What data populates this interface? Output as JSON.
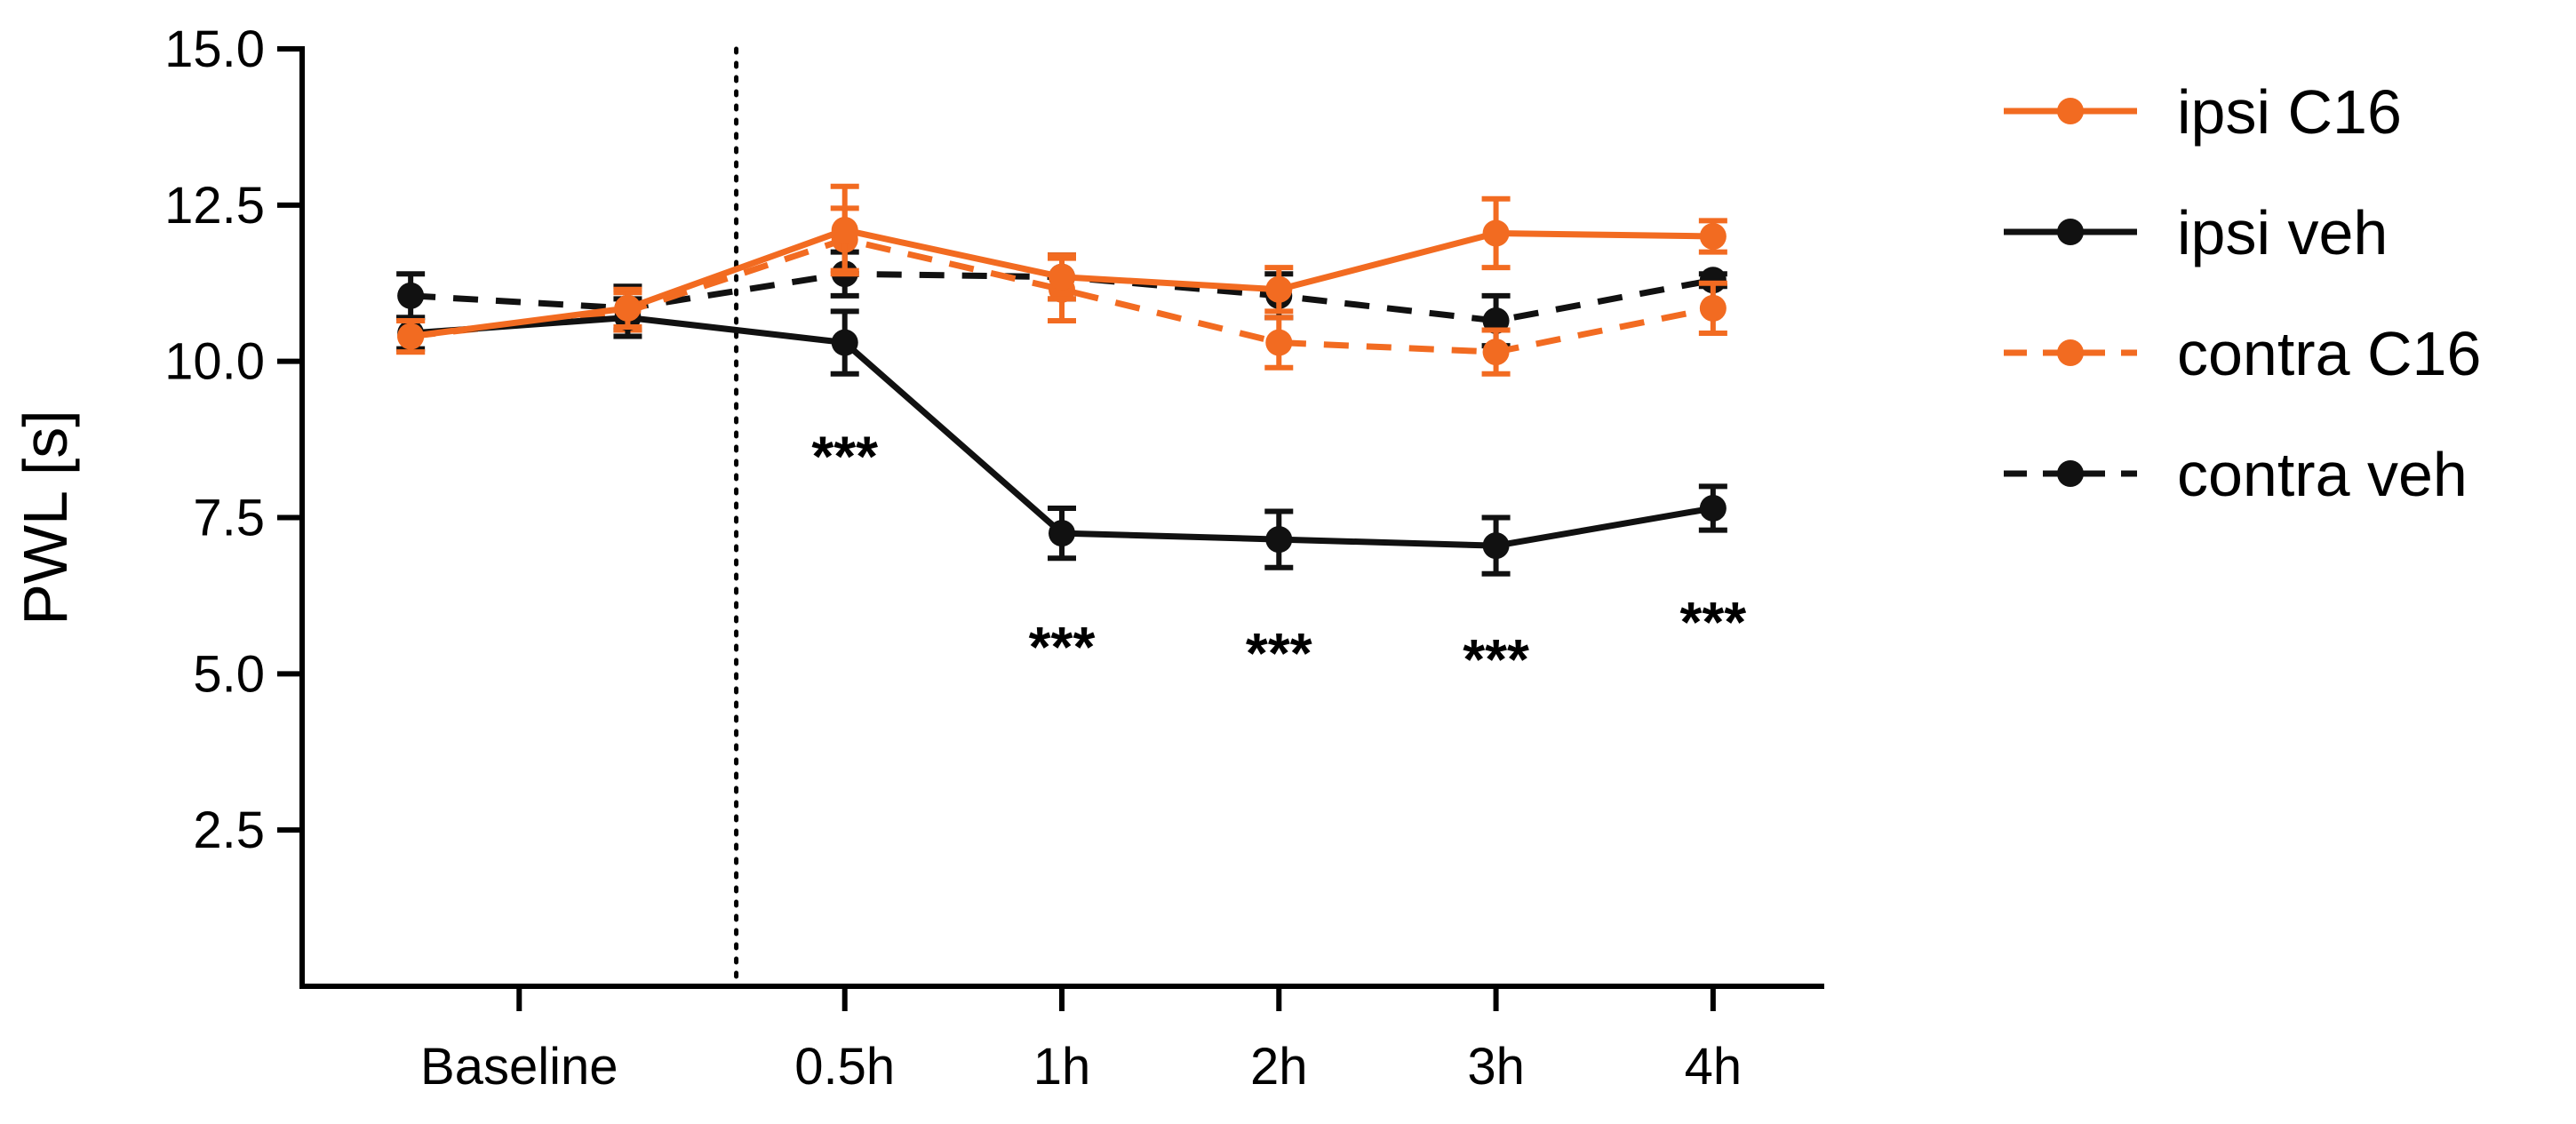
{
  "chart_data": {
    "type": "line",
    "title": "",
    "xlabel": "",
    "ylabel": "PWL [s]",
    "ylim": [
      0,
      15
    ],
    "yticks": [
      2.5,
      5.0,
      7.5,
      10.0,
      12.5,
      15.0
    ],
    "ytick_labels": [
      "2.5",
      "5.0",
      "7.5",
      "10.0",
      "12.5",
      "15.0"
    ],
    "x_positions": [
      0,
      1,
      2,
      3,
      4,
      5,
      6
    ],
    "xlim": [
      -0.5,
      6.5
    ],
    "xtick_positions": [
      0.5,
      2,
      3,
      4,
      5,
      6
    ],
    "xtick_labels": [
      "Baseline",
      "0.5h",
      "1h",
      "2h",
      "3h",
      "4h"
    ],
    "intervention_line_x": 1.5,
    "grid": false,
    "legend_position": "right",
    "series": [
      {
        "name": "ipsi C16",
        "color": "#f26b21",
        "dashed": false,
        "values": [
          10.4,
          10.85,
          12.1,
          11.35,
          11.15,
          12.05,
          12.0
        ],
        "errors": [
          0.25,
          0.3,
          0.7,
          0.35,
          0.35,
          0.55,
          0.25
        ]
      },
      {
        "name": "ipsi veh",
        "color": "#111111",
        "dashed": false,
        "values": [
          10.45,
          10.7,
          10.3,
          7.25,
          7.15,
          7.05,
          7.65
        ],
        "errors": [
          0.25,
          0.3,
          0.5,
          0.4,
          0.45,
          0.45,
          0.35
        ]
      },
      {
        "name": "contra C16",
        "color": "#f26b21",
        "dashed": true,
        "values": [
          10.4,
          10.8,
          11.95,
          11.15,
          10.3,
          10.15,
          10.85
        ],
        "errors": [
          0.25,
          0.3,
          0.5,
          0.5,
          0.4,
          0.35,
          0.4
        ]
      },
      {
        "name": "contra veh",
        "color": "#111111",
        "dashed": true,
        "values": [
          11.05,
          10.85,
          11.4,
          11.35,
          11.05,
          10.65,
          11.3
        ],
        "errors": [
          0.35,
          0.35,
          0.35,
          0.35,
          0.35,
          0.4,
          0.1
        ]
      }
    ],
    "annotations": [
      {
        "x": 2,
        "y": 10.3,
        "text": "***"
      },
      {
        "x": 3,
        "y": 7.25,
        "text": "***"
      },
      {
        "x": 4,
        "y": 7.15,
        "text": "***"
      },
      {
        "x": 5,
        "y": 7.05,
        "text": "***"
      },
      {
        "x": 6,
        "y": 7.65,
        "text": "***"
      }
    ]
  }
}
